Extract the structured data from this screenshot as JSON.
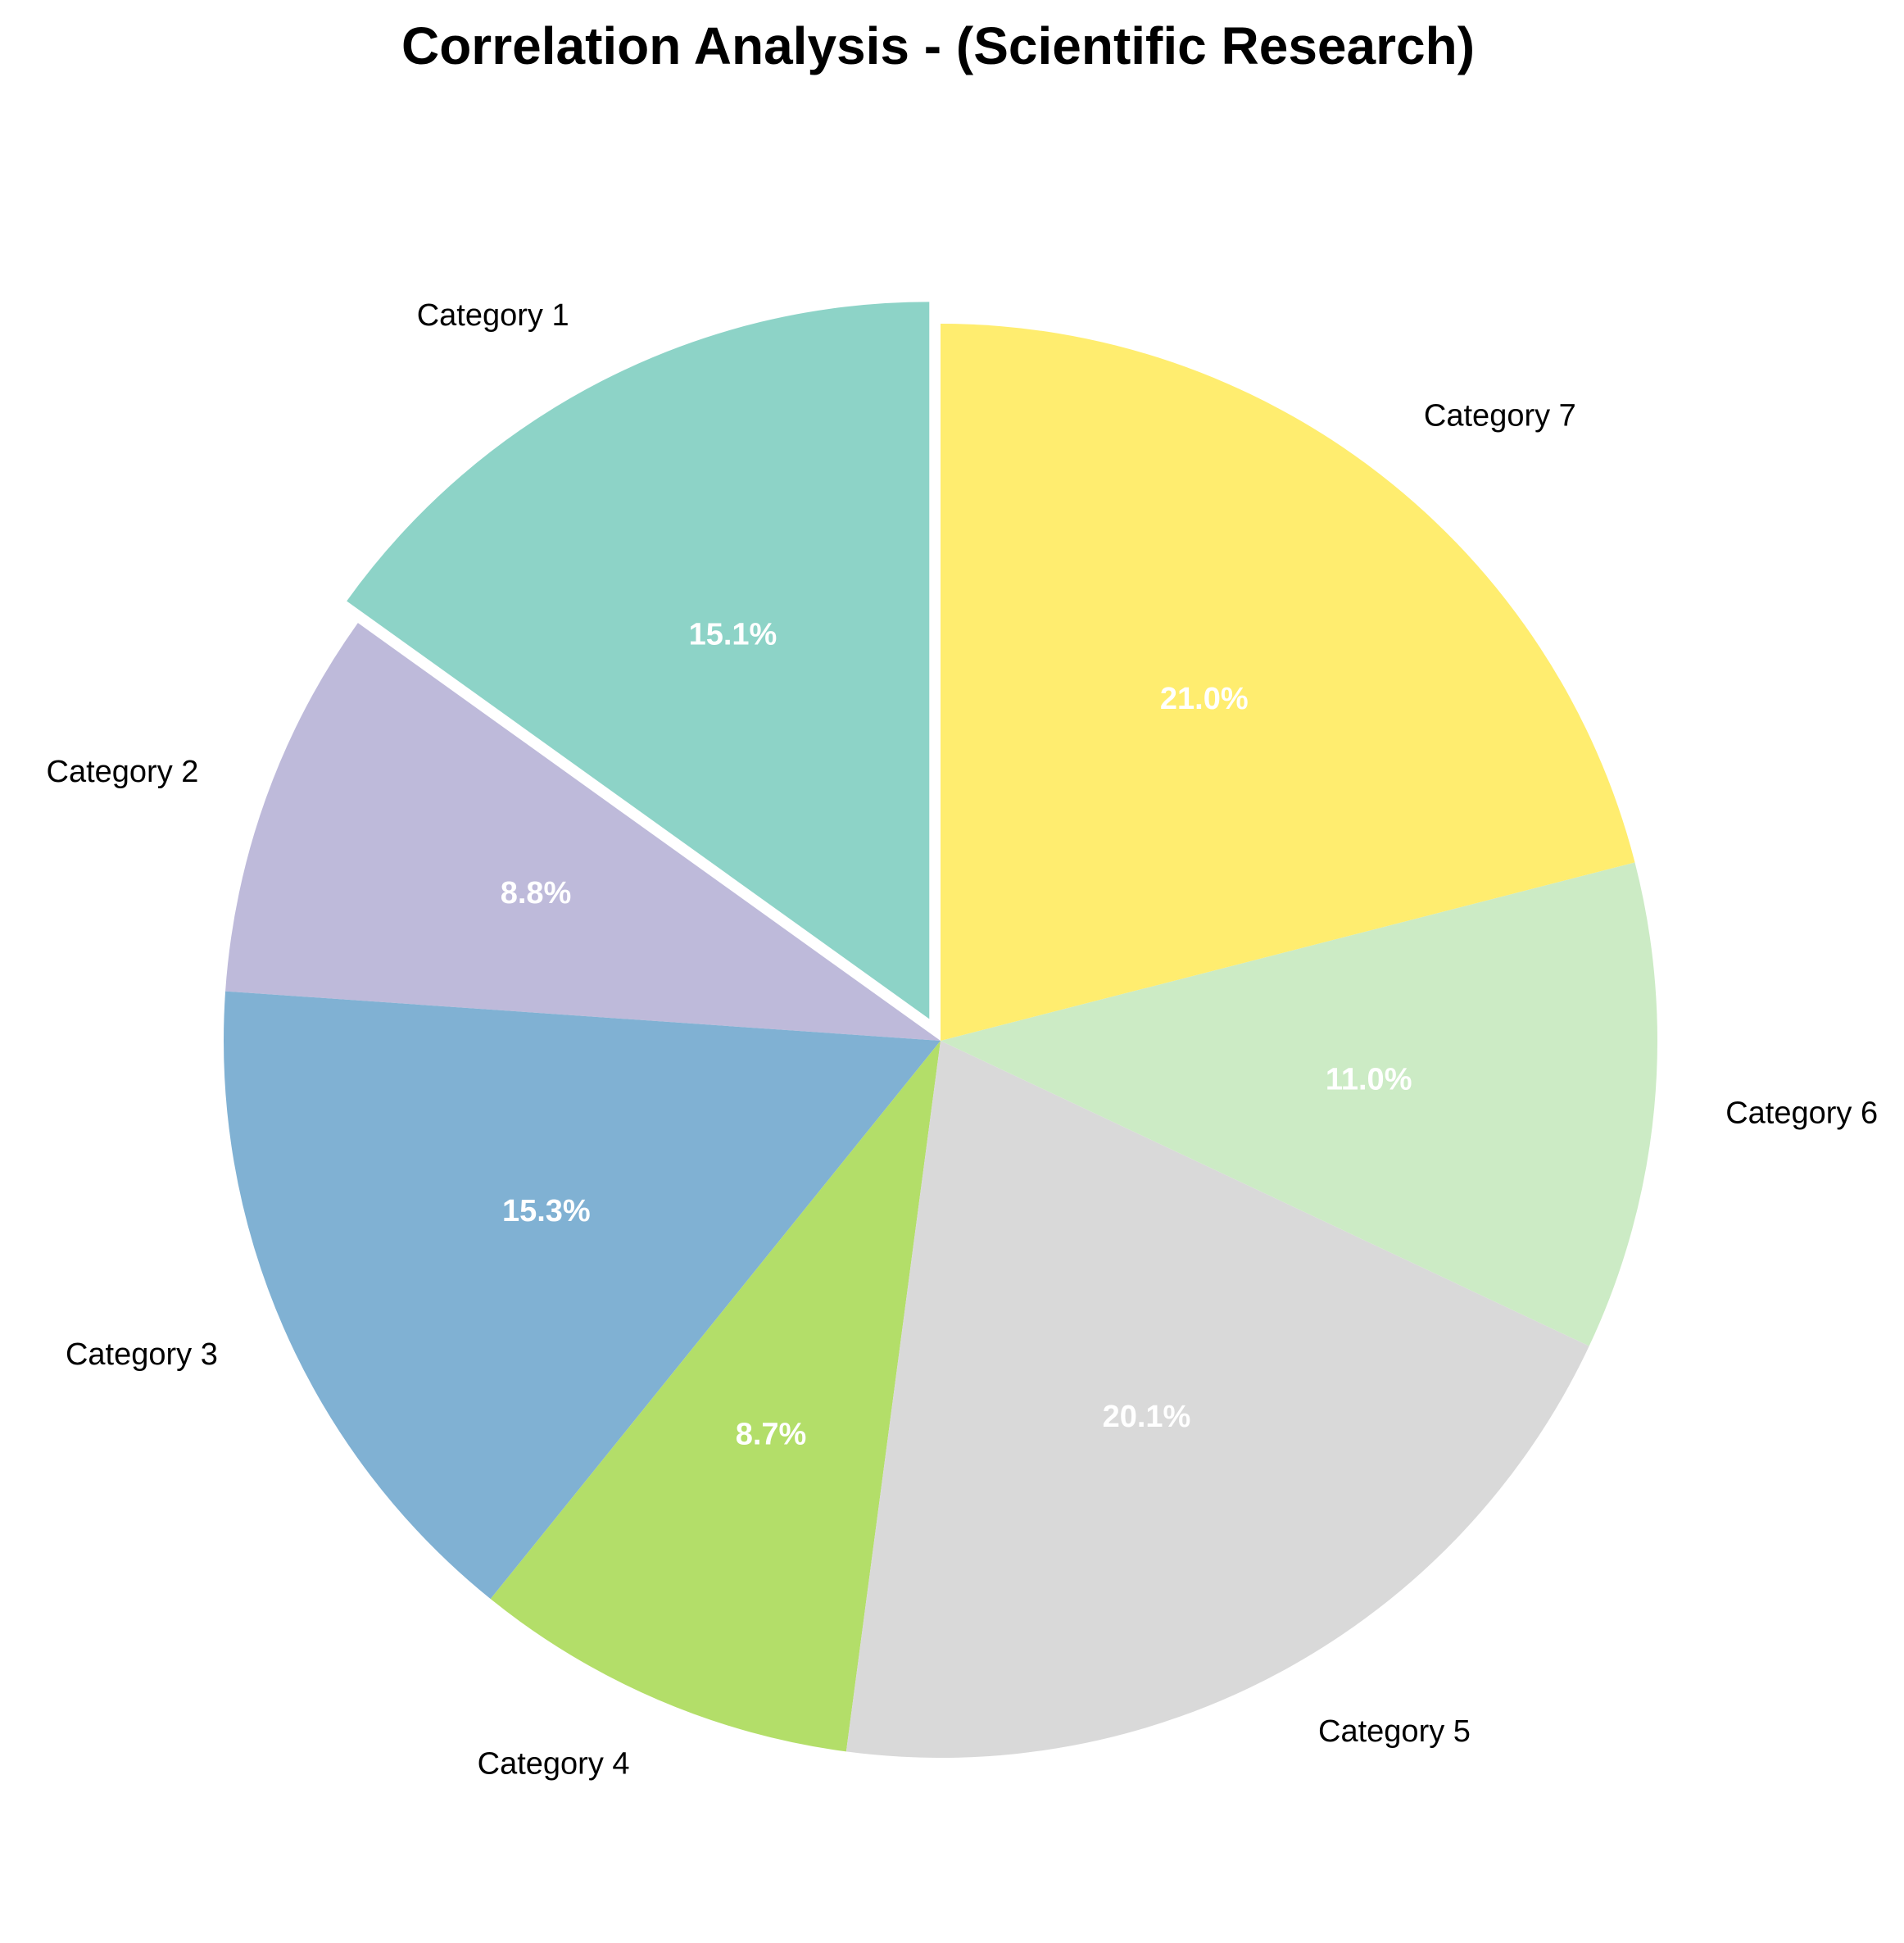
{
  "chart_data": {
    "type": "pie",
    "title": "Correlation Analysis - (Scientific Research)",
    "start_angle_deg": 90,
    "direction": "counterclockwise",
    "slices": [
      {
        "label": "Category 1",
        "pct": 15.1,
        "pct_label": "15.1%",
        "color": "#8dd3c7",
        "exploded": true
      },
      {
        "label": "Category 2",
        "pct": 8.8,
        "pct_label": "8.8%",
        "color": "#bebada",
        "exploded": false
      },
      {
        "label": "Category 3",
        "pct": 15.3,
        "pct_label": "15.3%",
        "color": "#80b1d3",
        "exploded": false
      },
      {
        "label": "Category 4",
        "pct": 8.7,
        "pct_label": "8.7%",
        "color": "#b3de69",
        "exploded": false
      },
      {
        "label": "Category 5",
        "pct": 20.1,
        "pct_label": "20.1%",
        "color": "#d9d9d9",
        "exploded": false
      },
      {
        "label": "Category 6",
        "pct": 11.0,
        "pct_label": "11.0%",
        "color": "#ccebc5",
        "exploded": false
      },
      {
        "label": "Category 7",
        "pct": 21.0,
        "pct_label": "21.0%",
        "color": "#ffed6f",
        "exploded": false
      }
    ]
  }
}
